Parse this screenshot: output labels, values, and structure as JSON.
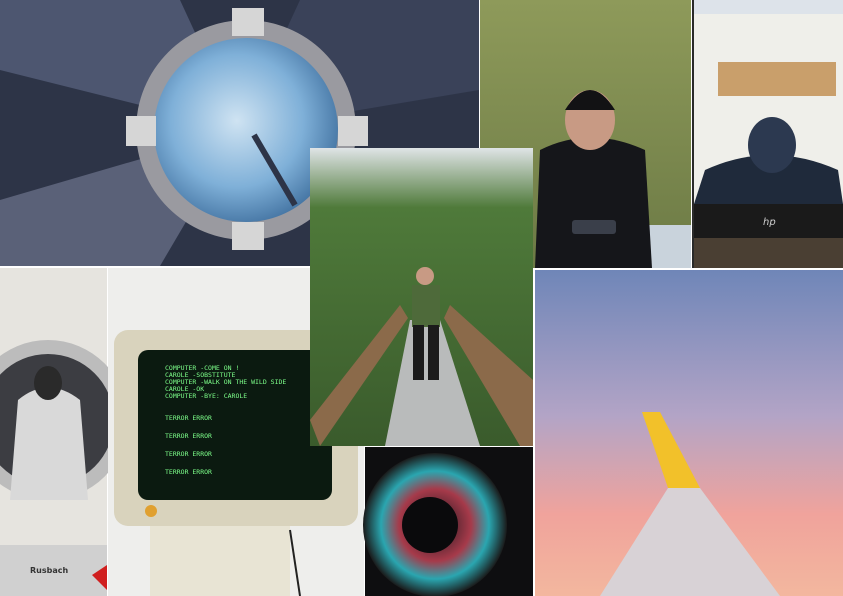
{
  "screen": {
    "lines": [
      "COMPUTER -COME ON !",
      "CAROLE -SOBSTITUTE",
      "COMPUTER -WALK ON THE WILD SIDE",
      "CAROLE -OK",
      "COMPUTER -BYE: CAROLE",
      "TERROR ERROR",
      "TERROR ERROR",
      "TERROR ERROR",
      "TERROR ERROR"
    ]
  },
  "washer": {
    "brand": "Rusbach"
  },
  "laptop": {
    "logo": "hp"
  }
}
